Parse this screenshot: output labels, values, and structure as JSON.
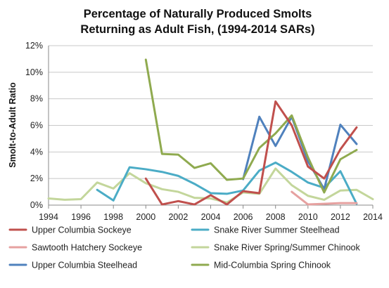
{
  "chart_data": {
    "type": "line",
    "title_lines": [
      "Percentage of Naturally Produced Smolts",
      "Returning as Adult Fish, (1994-2014 SARs)"
    ],
    "ylabel": "Smolt-to-Adult Ratio",
    "xlabel": "",
    "x_ticks": [
      1994,
      1996,
      1998,
      2000,
      2002,
      2004,
      2006,
      2008,
      2010,
      2012,
      2014
    ],
    "y_ticks": [
      0,
      2,
      4,
      6,
      8,
      10,
      12
    ],
    "y_tick_labels": [
      "0%",
      "2%",
      "4%",
      "6%",
      "8%",
      "10%",
      "12%"
    ],
    "xlim": [
      1994,
      2014
    ],
    "ylim": [
      0,
      12
    ],
    "grid": "horizontal",
    "legend_position": "bottom",
    "series": [
      {
        "name": "Upper Columbia Sockeye",
        "color": "#c0504d",
        "points": [
          [
            2000,
            2.0
          ],
          [
            2001,
            0.05
          ],
          [
            2002,
            0.3
          ],
          [
            2003,
            0.05
          ],
          [
            2004,
            0.75
          ],
          [
            2005,
            0.05
          ],
          [
            2006,
            1.05
          ],
          [
            2007,
            0.9
          ],
          [
            2008,
            7.8
          ],
          [
            2009,
            6.0
          ],
          [
            2010,
            2.9
          ],
          [
            2011,
            2.0
          ],
          [
            2012,
            4.2
          ],
          [
            2013,
            5.85
          ]
        ]
      },
      {
        "name": "Snake River Summer Steelhead",
        "color": "#4bacc6",
        "points": [
          [
            1997,
            1.15
          ],
          [
            1998,
            0.35
          ],
          [
            1999,
            2.85
          ],
          [
            2000,
            2.7
          ],
          [
            2001,
            2.5
          ],
          [
            2002,
            2.2
          ],
          [
            2003,
            1.6
          ],
          [
            2004,
            0.9
          ],
          [
            2005,
            0.85
          ],
          [
            2006,
            1.1
          ],
          [
            2007,
            2.6
          ],
          [
            2008,
            3.2
          ],
          [
            2009,
            2.5
          ],
          [
            2010,
            1.7
          ],
          [
            2011,
            1.3
          ],
          [
            2012,
            2.55
          ],
          [
            2013,
            0.1
          ]
        ]
      },
      {
        "name": "Sawtooth Hatchery Sockeye",
        "color": "#e6a1a0",
        "points": [
          [
            2009,
            1.0
          ],
          [
            2010,
            0.05
          ],
          [
            2011,
            0.1
          ],
          [
            2012,
            0.15
          ],
          [
            2013,
            0.15
          ]
        ]
      },
      {
        "name": "Snake River Spring/Summer Chinook",
        "color": "#c3d69b",
        "points": [
          [
            1994,
            0.5
          ],
          [
            1995,
            0.4
          ],
          [
            1996,
            0.45
          ],
          [
            1997,
            1.7
          ],
          [
            1998,
            1.25
          ],
          [
            1999,
            2.4
          ],
          [
            2000,
            1.65
          ],
          [
            2001,
            1.2
          ],
          [
            2002,
            1.0
          ],
          [
            2003,
            0.55
          ],
          [
            2004,
            0.5
          ],
          [
            2005,
            0.2
          ],
          [
            2006,
            0.95
          ],
          [
            2007,
            0.85
          ],
          [
            2008,
            2.75
          ],
          [
            2009,
            1.5
          ],
          [
            2010,
            0.7
          ],
          [
            2011,
            0.4
          ],
          [
            2012,
            1.1
          ],
          [
            2013,
            1.15
          ],
          [
            2014,
            0.45
          ]
        ]
      },
      {
        "name": "Upper Columbia Steelhead",
        "color": "#4f81bd",
        "points": [
          [
            2006,
            1.95
          ],
          [
            2007,
            6.65
          ],
          [
            2008,
            4.45
          ],
          [
            2009,
            6.65
          ],
          [
            2010,
            3.3
          ],
          [
            2011,
            1.2
          ],
          [
            2012,
            6.05
          ],
          [
            2013,
            4.6
          ]
        ]
      },
      {
        "name": "Mid-Columbia Spring Chinook",
        "color": "#8faa4f",
        "points": [
          [
            2000,
            10.95
          ],
          [
            2001,
            3.85
          ],
          [
            2002,
            3.8
          ],
          [
            2003,
            2.8
          ],
          [
            2004,
            3.15
          ],
          [
            2005,
            1.9
          ],
          [
            2006,
            2.0
          ],
          [
            2007,
            4.3
          ],
          [
            2008,
            5.4
          ],
          [
            2009,
            6.75
          ],
          [
            2010,
            3.6
          ],
          [
            2011,
            0.95
          ],
          [
            2012,
            3.45
          ],
          [
            2013,
            4.15
          ]
        ]
      }
    ]
  }
}
